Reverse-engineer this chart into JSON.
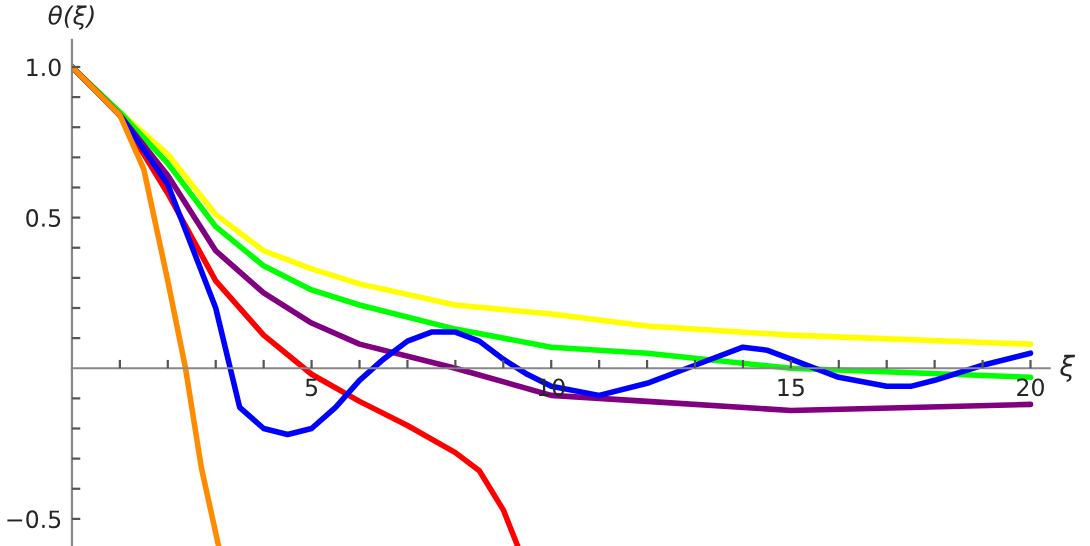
{
  "chart_data": {
    "type": "line",
    "xlabel": "ξ",
    "ylabel": "θ(ξ)",
    "xlim": [
      0,
      20.4
    ],
    "ylim": [
      -0.59,
      1.09
    ],
    "xticks": [
      {
        "value": 1,
        "label": null
      },
      {
        "value": 2,
        "label": null
      },
      {
        "value": 3,
        "label": null
      },
      {
        "value": 4,
        "label": null
      },
      5,
      {
        "value": 6,
        "label": null
      },
      {
        "value": 7,
        "label": null
      },
      {
        "value": 8,
        "label": null
      },
      {
        "value": 9,
        "label": null
      },
      10,
      {
        "value": 11,
        "label": null
      },
      {
        "value": 12,
        "label": null
      },
      {
        "value": 13,
        "label": null
      },
      {
        "value": 14,
        "label": null
      },
      15,
      {
        "value": 16,
        "label": null
      },
      {
        "value": 17,
        "label": null
      },
      {
        "value": 18,
        "label": null
      },
      {
        "value": 19,
        "label": null
      },
      20
    ],
    "yticks": [
      {
        "value": -0.5,
        "label": "−0.5"
      },
      {
        "value": -0.4,
        "label": null
      },
      {
        "value": -0.3,
        "label": null
      },
      {
        "value": -0.2,
        "label": null
      },
      {
        "value": -0.1,
        "label": null
      },
      {
        "value": 0.1,
        "label": null
      },
      {
        "value": 0.2,
        "label": null
      },
      {
        "value": 0.3,
        "label": null
      },
      {
        "value": 0.4,
        "label": null
      },
      0.5,
      {
        "value": 0.6,
        "label": null
      },
      {
        "value": 0.7,
        "label": null
      },
      {
        "value": 0.8,
        "label": null
      },
      {
        "value": 0.9,
        "label": null
      },
      {
        "value": 1.0,
        "label": "1.0"
      }
    ],
    "grid": false,
    "marker": "none",
    "line_style": "solid",
    "series": [
      {
        "color": "#ffff00",
        "x": [
          0,
          1,
          2,
          3,
          4,
          5,
          6,
          8,
          10,
          12,
          15,
          20
        ],
        "values": [
          1,
          0.85,
          0.71,
          0.51,
          0.39,
          0.33,
          0.28,
          0.21,
          0.18,
          0.14,
          0.11,
          0.08
        ]
      },
      {
        "color": "#00ff00",
        "x": [
          0,
          1,
          2,
          3,
          4,
          5,
          6,
          8,
          10,
          12,
          15,
          20
        ],
        "values": [
          1,
          0.85,
          0.68,
          0.47,
          0.34,
          0.26,
          0.21,
          0.13,
          0.07,
          0.05,
          0.0,
          -0.03
        ]
      },
      {
        "color": "#800080",
        "x": [
          0,
          1,
          2,
          3,
          4,
          5,
          6,
          8,
          10,
          12,
          15,
          17.5,
          20
        ],
        "values": [
          1,
          0.84,
          0.64,
          0.39,
          0.25,
          0.15,
          0.08,
          0.0,
          -0.09,
          -0.11,
          -0.14,
          -0.13,
          -0.12
        ]
      },
      {
        "color": "#ff0000",
        "x": [
          0,
          1,
          2,
          3,
          4,
          5,
          6,
          7,
          8,
          8.5,
          9,
          9.3
        ],
        "values": [
          1,
          0.84,
          0.58,
          0.29,
          0.11,
          -0.02,
          -0.11,
          -0.19,
          -0.28,
          -0.34,
          -0.47,
          -0.59
        ]
      },
      {
        "color": "#0000ff",
        "x": [
          0,
          1,
          2,
          3,
          3.5,
          4,
          4.5,
          5,
          5.5,
          6,
          6.5,
          7,
          7.5,
          8,
          8.5,
          9,
          9.5,
          10,
          11,
          12,
          13,
          14,
          14.5,
          15,
          16,
          17,
          17.5,
          18,
          19,
          20
        ],
        "values": [
          1,
          0.84,
          0.61,
          0.2,
          -0.13,
          -0.2,
          -0.22,
          -0.2,
          -0.13,
          -0.04,
          0.03,
          0.09,
          0.12,
          0.12,
          0.09,
          0.03,
          -0.02,
          -0.06,
          -0.09,
          -0.05,
          0.01,
          0.07,
          0.06,
          0.03,
          -0.03,
          -0.06,
          -0.06,
          -0.04,
          0.01,
          0.05
        ]
      },
      {
        "color": "#ff8c00",
        "x": [
          0,
          1,
          1.5,
          2,
          2.37,
          2.7,
          3.06
        ],
        "values": [
          1,
          0.84,
          0.66,
          0.29,
          0.0,
          -0.33,
          -0.59
        ]
      }
    ]
  }
}
